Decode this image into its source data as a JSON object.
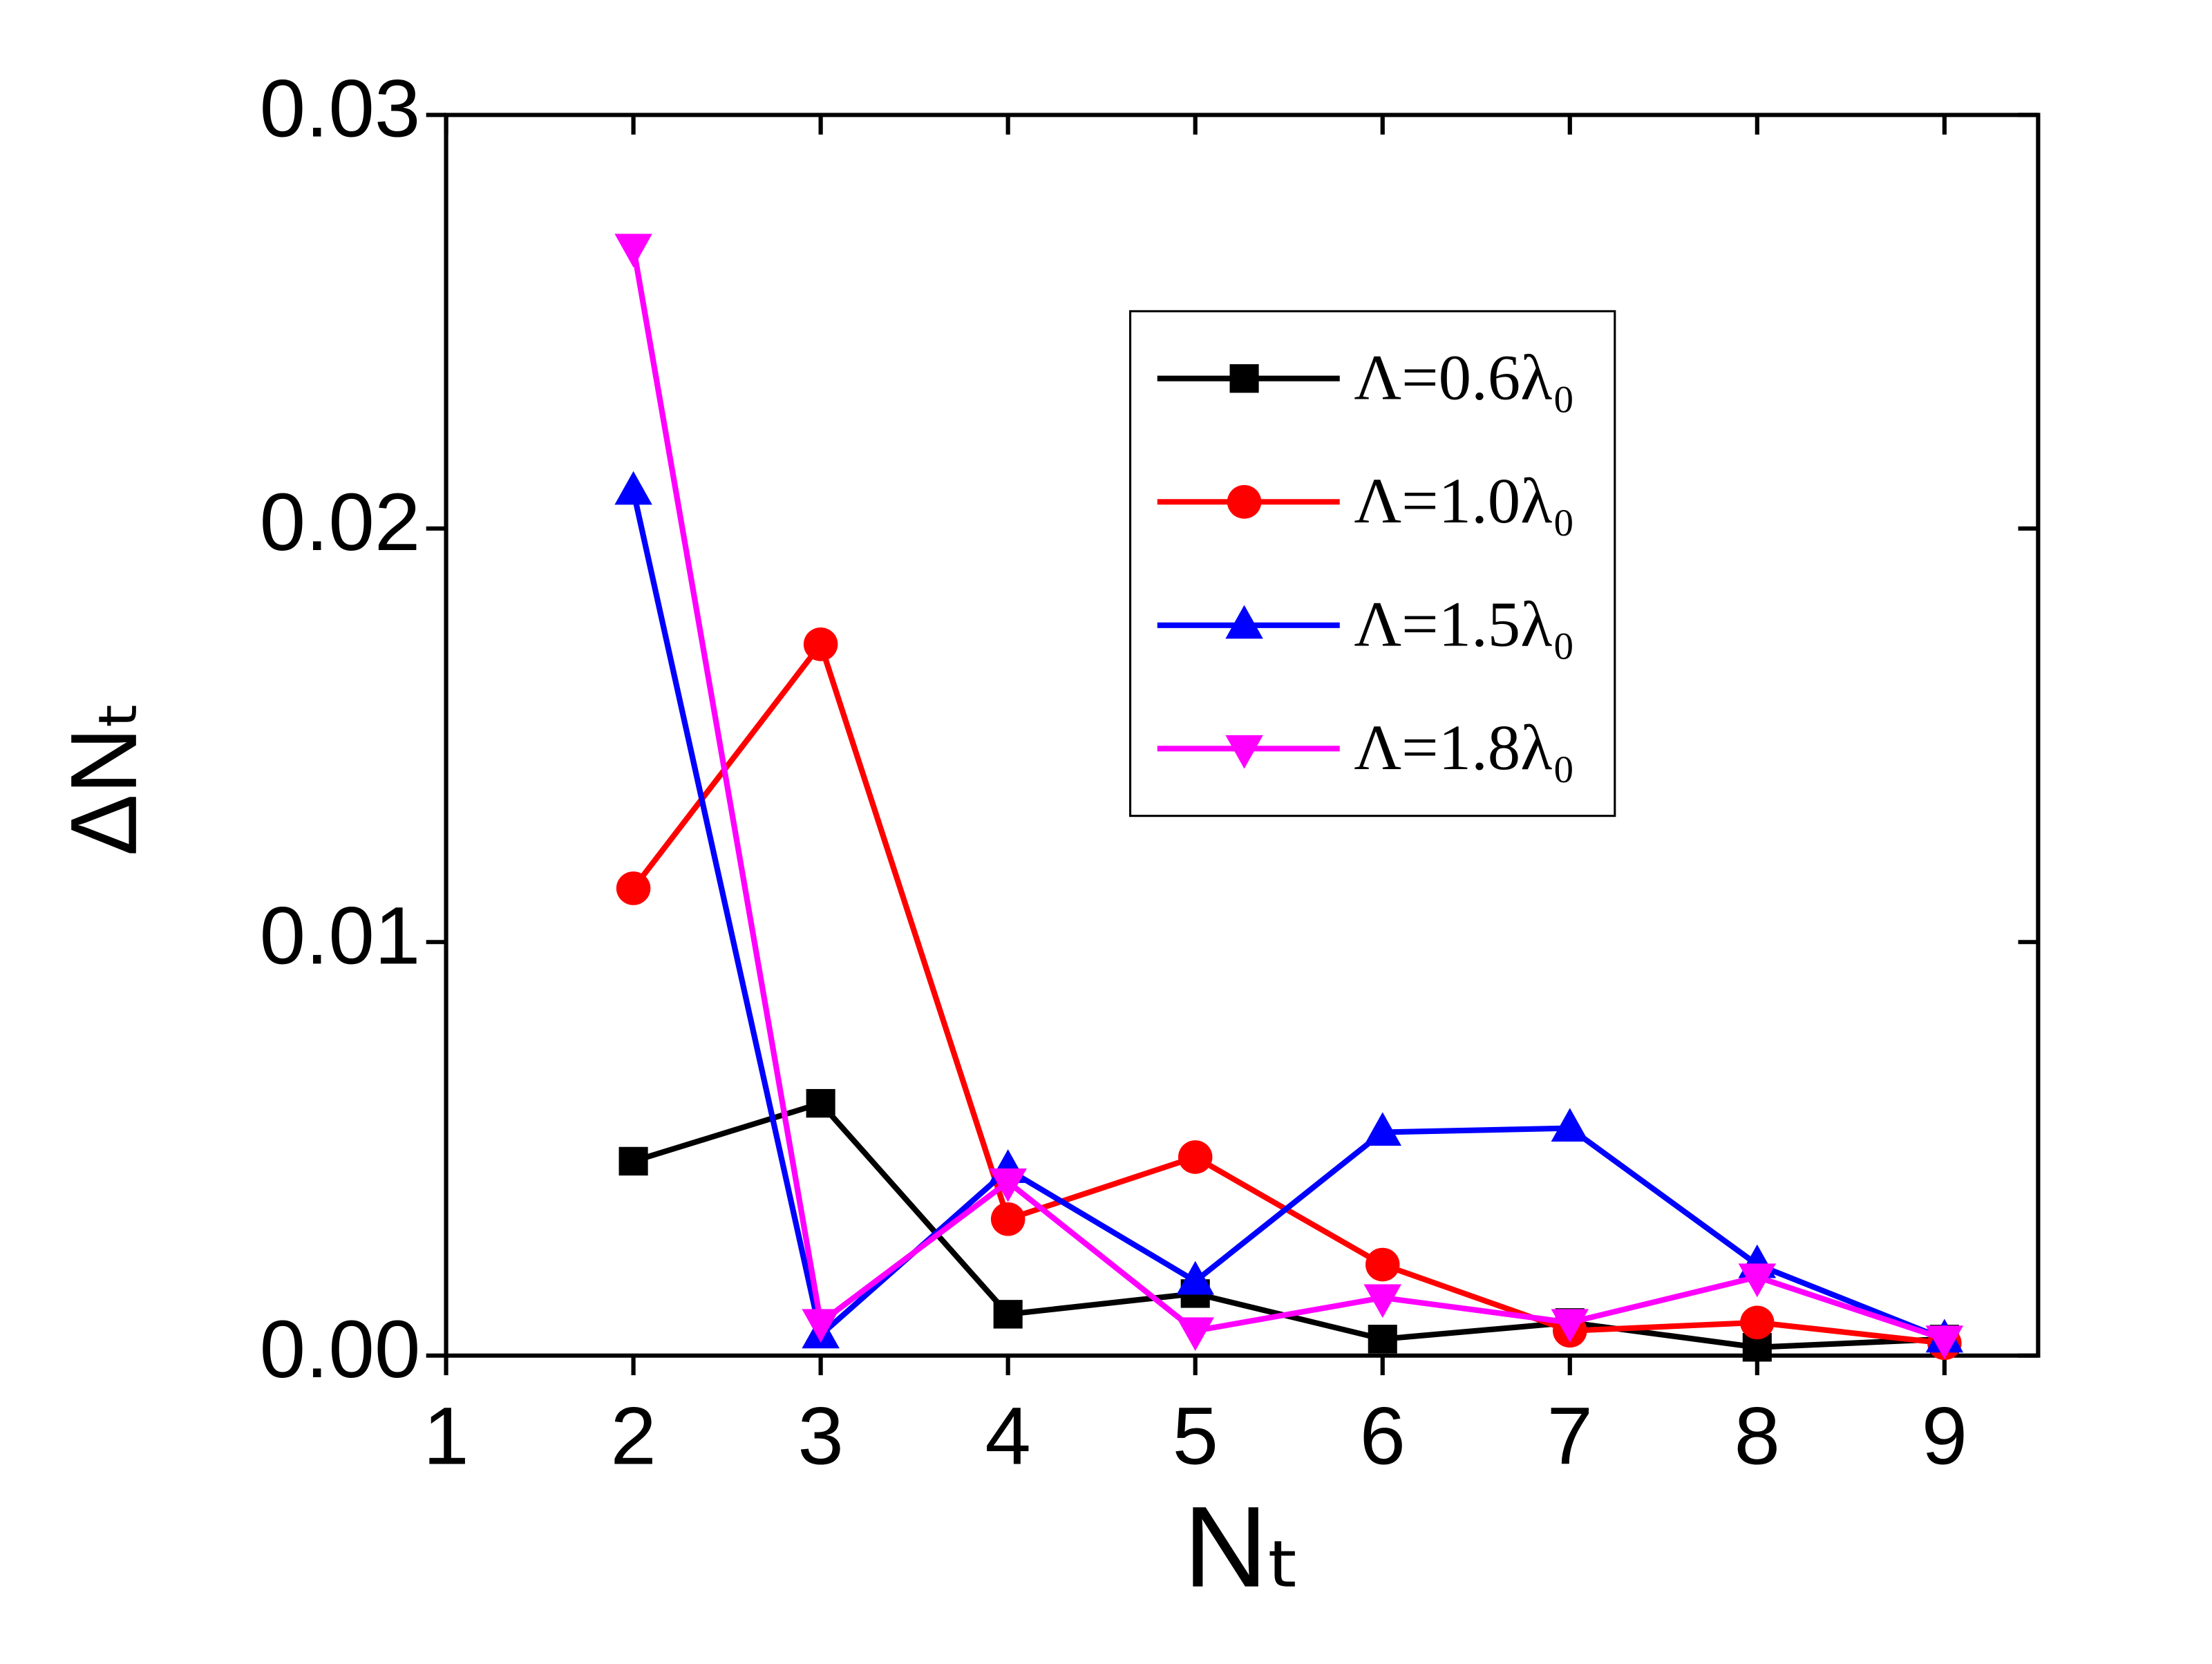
{
  "chart_data": {
    "type": "line",
    "x_label": "Nₜ",
    "y_label": "ΔNₜ",
    "x": [
      2,
      3,
      4,
      5,
      6,
      7,
      8,
      9
    ],
    "series": [
      {
        "name": "Λ=0.6λ₀",
        "color": "#000000",
        "marker": "square",
        "values": [
          0.0047,
          0.0061,
          0.001,
          0.0015,
          0.0004,
          0.0008,
          0.0002,
          0.0004
        ]
      },
      {
        "name": "Λ=1.0λ₀",
        "color": "#ff0000",
        "marker": "circle",
        "values": [
          0.0113,
          0.0172,
          0.0033,
          0.0048,
          0.0022,
          0.0006,
          0.0008,
          0.0003
        ]
      },
      {
        "name": "Λ=1.5λ₀",
        "color": "#0000ff",
        "marker": "triangle-up",
        "values": [
          0.0209,
          0.0005,
          0.0045,
          0.0018,
          0.0054,
          0.0055,
          0.0022,
          0.0004
        ]
      },
      {
        "name": "Λ=1.8λ₀",
        "color": "#ff00ff",
        "marker": "triangle-down",
        "values": [
          0.0268,
          0.0008,
          0.0042,
          0.0006,
          0.0014,
          0.0008,
          0.0019,
          0.0004
        ]
      }
    ],
    "xlim": [
      1,
      9.5
    ],
    "xticks": [
      1,
      2,
      3,
      4,
      5,
      6,
      7,
      8,
      9
    ],
    "ylim": [
      0,
      0.03
    ],
    "yticks": [
      {
        "value": 0,
        "label": "0.00"
      },
      0.01,
      0.02,
      0.03
    ],
    "legend": "upper-right"
  }
}
